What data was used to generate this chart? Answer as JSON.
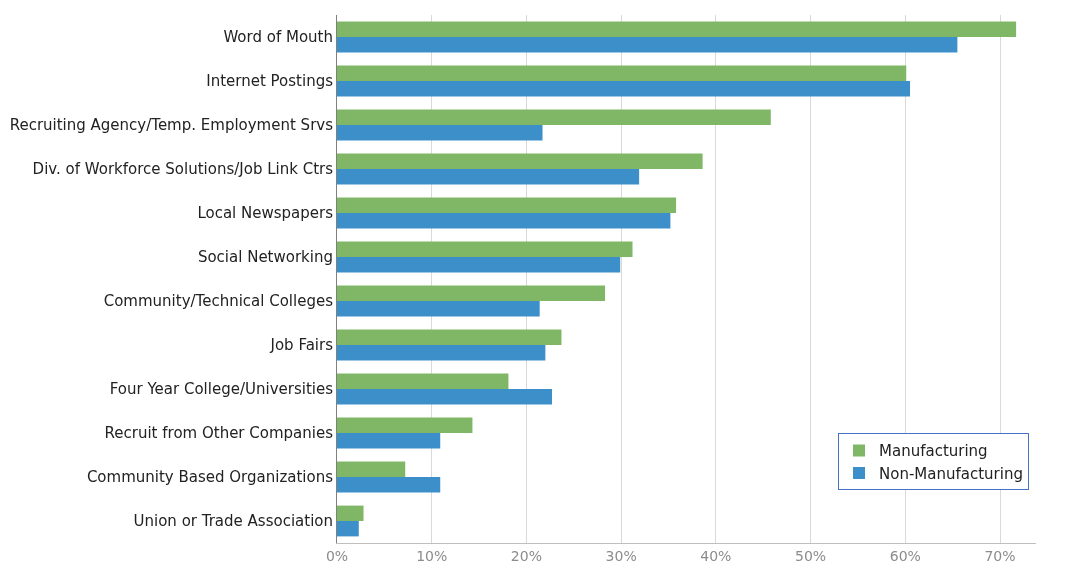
{
  "chart_data": {
    "type": "bar",
    "orientation": "horizontal",
    "categories": [
      "Word of Mouth",
      "Internet Postings",
      "Recruiting Agency/Temp. Employment Srvs",
      "Div. of Workforce Solutions/Job Link Ctrs",
      "Local Newspapers",
      "Social Networking",
      "Community/Technical Colleges",
      "Job Fairs",
      "Four Year College/Universities",
      "Recruit from Other Companies",
      "Community Based Organizations",
      "Union or Trade Association"
    ],
    "series": [
      {
        "name": "Manufacturing",
        "color": "#7fb766",
        "values": [
          71.7,
          60.1,
          45.8,
          38.6,
          35.8,
          31.2,
          28.3,
          23.7,
          18.1,
          14.3,
          7.2,
          2.8
        ]
      },
      {
        "name": "Non-Manufacturing",
        "color": "#3d8fc9",
        "values": [
          65.5,
          60.5,
          21.7,
          31.9,
          35.2,
          29.9,
          21.4,
          22.0,
          22.7,
          10.9,
          10.9,
          2.3
        ]
      }
    ],
    "xlim": [
      0,
      73.8
    ],
    "xticks": [
      {
        "value": 0,
        "label": "0%"
      },
      {
        "value": 10,
        "label": "10%"
      },
      {
        "value": 20,
        "label": "20%"
      },
      {
        "value": 30,
        "label": "30%"
      },
      {
        "value": 40,
        "label": "40%"
      },
      {
        "value": 50,
        "label": "50%"
      },
      {
        "value": 60,
        "label": "60%"
      },
      {
        "value": 70,
        "label": "70%"
      }
    ],
    "grid": "x",
    "legend": "bottom right"
  }
}
